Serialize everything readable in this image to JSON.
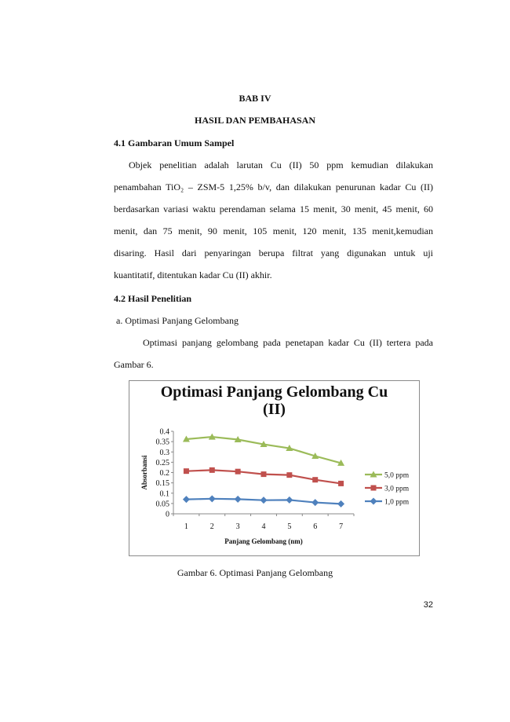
{
  "heading": {
    "chapter": "BAB IV",
    "title": "HASIL DAN PEMBAHASAN"
  },
  "section_1": {
    "title": "4.1  Gambaran Umum Sampel",
    "lines": [
      "Objek penelitian adalah larutan Cu (II) 50 ppm kemudian dilakukan",
      "penambahan TiO₂ – ZSM-5 1,25% b/v, dan dilakukan penurunan kadar Cu (II)",
      "berdasarkan variasi waktu perendaman selama 15 menit, 30 menit, 45 menit, 60",
      "menit, dan 75 menit, 90 menit, 105 menit, 120 menit, 135 menit,kemudian",
      "disaring. Hasil dari penyaringan berupa filtrat yang digunakan untuk uji",
      "kuantitatif, ditentukan kadar Cu (II) akhir."
    ]
  },
  "section_2": {
    "title": "4.2  Hasil Penelitian",
    "subsection": "a.   Optimasi Panjang Gelombang",
    "lines": [
      "Optimasi panjang gelombang pada penetapan kadar Cu (II) tertera pada",
      "Gambar 6."
    ]
  },
  "chart_data": {
    "type": "line",
    "title_line1": "Optimasi Panjang Gelombang Cu",
    "title_line2": "(II)",
    "xlabel": "Panjang Gelombang (nm)",
    "ylabel": "Absorbansi",
    "categories": [
      "1",
      "2",
      "3",
      "4",
      "5",
      "6",
      "7"
    ],
    "ylim": [
      0,
      0.4
    ],
    "yticks": [
      "0",
      "0.05",
      "0.1",
      "0.15",
      "0.2",
      "0.25",
      "0.3",
      "0.35",
      "0.4"
    ],
    "legend_position": "right",
    "series": [
      {
        "name": "5,0 ppm",
        "color": "#9bbb59",
        "marker": "triangle",
        "values": [
          0.362,
          0.373,
          0.36,
          0.337,
          0.318,
          0.28,
          0.246
        ]
      },
      {
        "name": "3,0 ppm",
        "color": "#c0504d",
        "marker": "square",
        "values": [
          0.207,
          0.212,
          0.205,
          0.192,
          0.188,
          0.165,
          0.147
        ]
      },
      {
        "name": "1,0 ppm",
        "color": "#4f81bd",
        "marker": "diamond",
        "values": [
          0.07,
          0.073,
          0.071,
          0.066,
          0.067,
          0.055,
          0.048
        ]
      }
    ]
  },
  "caption": "Gambar 6. Optimasi Panjang Gelombang",
  "page_number": "32"
}
